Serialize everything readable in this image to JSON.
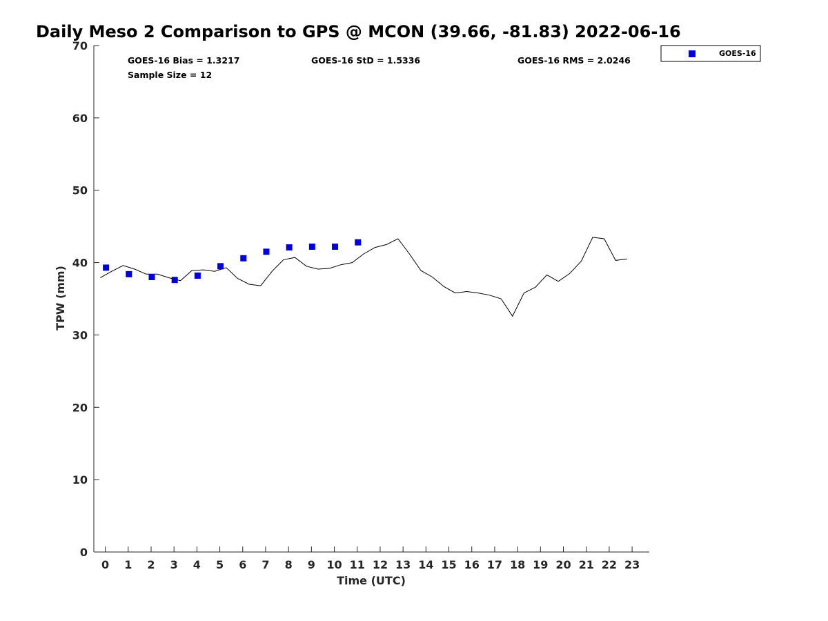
{
  "chart_data": {
    "type": "scatter",
    "title": "Daily Meso 2 Comparison to GPS @ MCON (39.66, -81.83) 2022-06-16",
    "xlabel": "Time (UTC)",
    "ylabel": "TPW (mm)",
    "xlim": [
      -0.5,
      23.75
    ],
    "ylim": [
      0,
      70
    ],
    "x_ticks": [
      "0",
      "1",
      "2",
      "3",
      "4",
      "5",
      "6",
      "7",
      "8",
      "9",
      "10",
      "11",
      "12",
      "13",
      "14",
      "15",
      "16",
      "17",
      "18",
      "19",
      "20",
      "21",
      "22",
      "23"
    ],
    "y_ticks": [
      "0",
      "10",
      "20",
      "30",
      "40",
      "50",
      "60",
      "70"
    ],
    "grid": false,
    "legend_position": "top-right (outside plot)",
    "stats": {
      "bias": "GOES-16 Bias = 1.3217",
      "std": "GOES-16 StD = 1.5336",
      "rms": "GOES-16 RMS = 2.0246",
      "sample": "Sample Size = 12"
    },
    "series": [
      {
        "name": "GOES-16",
        "kind": "scatter",
        "marker": "square",
        "color": "#0000dd",
        "x": [
          0.03,
          1.03,
          2.03,
          3.03,
          4.03,
          5.03,
          6.03,
          7.03,
          8.03,
          9.03,
          10.03,
          11.03
        ],
        "y": [
          39.3,
          38.4,
          38.0,
          37.6,
          38.2,
          39.5,
          40.6,
          41.5,
          42.1,
          42.2,
          42.2,
          42.8
        ]
      },
      {
        "kind": "line",
        "color": "#000000",
        "x": [
          -0.22,
          0.28,
          0.78,
          1.28,
          1.78,
          2.28,
          2.78,
          3.28,
          3.78,
          4.28,
          4.78,
          5.28,
          5.78,
          6.28,
          6.78,
          7.28,
          7.78,
          8.28,
          8.78,
          9.28,
          9.78,
          10.28,
          10.78,
          11.28,
          11.78,
          12.28,
          12.78,
          13.28,
          13.78,
          14.28,
          14.78,
          15.28,
          15.78,
          16.28,
          16.78,
          17.28,
          17.78,
          18.28,
          18.78,
          19.28,
          19.78,
          20.28,
          20.78,
          21.28,
          21.78,
          22.28,
          22.78
        ],
        "y": [
          37.9,
          38.8,
          39.6,
          39.1,
          38.4,
          38.4,
          37.9,
          37.5,
          38.9,
          39.0,
          38.8,
          39.3,
          37.8,
          37.0,
          36.8,
          38.8,
          40.4,
          40.7,
          39.5,
          39.1,
          39.2,
          39.7,
          40.0,
          41.2,
          42.1,
          42.5,
          43.3,
          41.2,
          38.9,
          38.0,
          36.7,
          35.8,
          36.0,
          35.8,
          35.5,
          35.0,
          32.6,
          35.8,
          36.6,
          38.3,
          37.4,
          38.5,
          40.2,
          43.5,
          43.3,
          40.3,
          40.5
        ]
      }
    ]
  }
}
